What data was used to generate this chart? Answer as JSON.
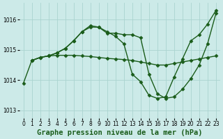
{
  "title": "Graphe pression niveau de la mer (hPa)",
  "bg_color": "#cceae8",
  "line_color": "#1a5c1a",
  "grid_color": "#aad4d0",
  "xlim": [
    -0.5,
    23.5
  ],
  "ylim": [
    1012.75,
    1016.55
  ],
  "yticks": [
    1013,
    1014,
    1015,
    1016
  ],
  "xticks": [
    0,
    1,
    2,
    3,
    4,
    5,
    6,
    7,
    8,
    9,
    10,
    11,
    12,
    13,
    14,
    15,
    16,
    17,
    18,
    19,
    20,
    21,
    22,
    23
  ],
  "series": [
    {
      "x": [
        0,
        1,
        2,
        3,
        4,
        5,
        6,
        7,
        8,
        9,
        10,
        11,
        12,
        13,
        14,
        15,
        16,
        17,
        18,
        19,
        20,
        21,
        22,
        23
      ],
      "y": [
        1013.9,
        1014.65,
        1014.75,
        1014.8,
        1014.82,
        1014.82,
        1014.82,
        1014.8,
        1014.78,
        1014.75,
        1014.72,
        1014.7,
        1014.68,
        1014.65,
        1014.6,
        1014.55,
        1014.5,
        1014.5,
        1014.55,
        1014.6,
        1014.65,
        1014.7,
        1014.75,
        1014.8
      ]
    },
    {
      "x": [
        1,
        2,
        3,
        4,
        5,
        6,
        7,
        8,
        9,
        10,
        11,
        12,
        13,
        14,
        15,
        16,
        17,
        18,
        19,
        20,
        21,
        22,
        23
      ],
      "y": [
        1014.65,
        1014.75,
        1014.8,
        1014.9,
        1015.05,
        1015.3,
        1015.6,
        1015.75,
        1015.75,
        1015.55,
        1015.55,
        1015.5,
        1015.5,
        1015.4,
        1014.2,
        1013.55,
        1013.4,
        1013.45,
        1013.7,
        1014.05,
        1014.5,
        1015.2,
        1016.2
      ]
    },
    {
      "x": [
        1,
        2,
        3,
        4,
        5,
        6,
        7,
        8,
        9,
        10,
        11,
        12,
        13,
        14,
        15,
        16,
        17,
        18,
        19,
        20,
        21,
        22,
        23
      ],
      "y": [
        1014.65,
        1014.75,
        1014.8,
        1014.9,
        1015.05,
        1015.3,
        1015.6,
        1015.8,
        1015.75,
        1015.6,
        1015.45,
        1015.2,
        1014.2,
        1013.95,
        1013.5,
        1013.4,
        1013.45,
        1014.1,
        1014.7,
        1015.3,
        1015.5,
        1015.85,
        1016.3
      ]
    }
  ],
  "marker": "D",
  "markersize": 2.5,
  "linewidth": 1.0,
  "title_fontsize": 7.5,
  "tick_fontsize": 5.5,
  "label_color": "#1a5c1a"
}
